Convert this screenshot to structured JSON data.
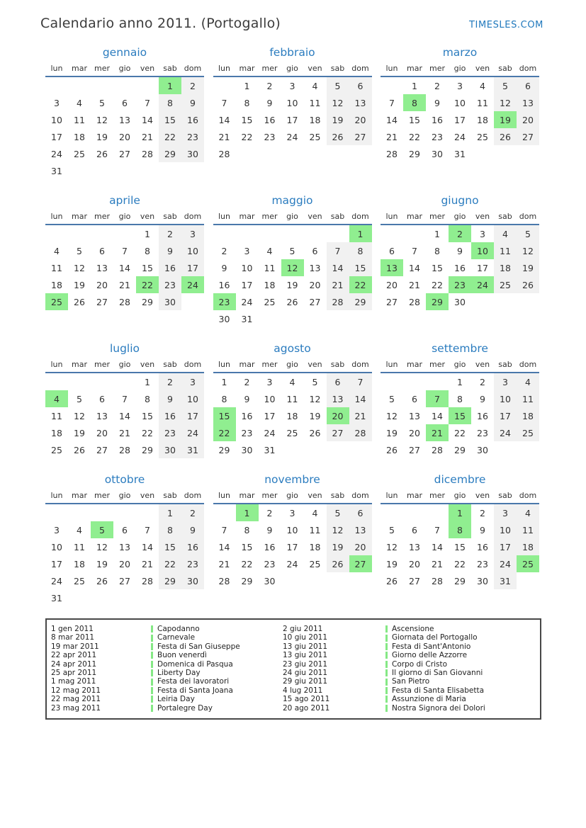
{
  "header": {
    "title": "Calendario anno 2011. (Portogallo)",
    "site": "TIMESLES.COM"
  },
  "weekdays": [
    "lun",
    "mar",
    "mer",
    "gio",
    "ven",
    "sab",
    "dom"
  ],
  "months": [
    {
      "name": "gennaio",
      "start": 5,
      "days": 31,
      "holidays": [
        1
      ]
    },
    {
      "name": "febbraio",
      "start": 1,
      "days": 28,
      "holidays": []
    },
    {
      "name": "marzo",
      "start": 1,
      "days": 31,
      "holidays": [
        8,
        19
      ]
    },
    {
      "name": "aprile",
      "start": 4,
      "days": 30,
      "holidays": [
        22,
        24,
        25
      ]
    },
    {
      "name": "maggio",
      "start": 6,
      "days": 31,
      "holidays": [
        1,
        12,
        22,
        23
      ]
    },
    {
      "name": "giugno",
      "start": 2,
      "days": 30,
      "holidays": [
        2,
        10,
        13,
        23,
        24,
        29
      ]
    },
    {
      "name": "luglio",
      "start": 4,
      "days": 31,
      "holidays": [
        4
      ]
    },
    {
      "name": "agosto",
      "start": 0,
      "days": 31,
      "holidays": [
        15,
        20,
        22
      ]
    },
    {
      "name": "settembre",
      "start": 3,
      "days": 30,
      "holidays": [
        7,
        15,
        21
      ]
    },
    {
      "name": "ottobre",
      "start": 5,
      "days": 31,
      "holidays": [
        5
      ]
    },
    {
      "name": "novembre",
      "start": 1,
      "days": 30,
      "holidays": [
        1,
        27
      ]
    },
    {
      "name": "dicembre",
      "start": 3,
      "days": 31,
      "holidays": [
        1,
        8,
        25
      ]
    }
  ],
  "legend": {
    "column_1": [
      {
        "date": "1 gen 2011",
        "name": "Capodanno"
      },
      {
        "date": "8 mar 2011",
        "name": "Carnevale"
      },
      {
        "date": "19 mar 2011",
        "name": "Festa di San Giuseppe"
      },
      {
        "date": "22 apr 2011",
        "name": "Buon venerdì"
      },
      {
        "date": "24 apr 2011",
        "name": "Domenica di Pasqua"
      },
      {
        "date": "25 apr 2011",
        "name": "Liberty Day"
      },
      {
        "date": "1 mag 2011",
        "name": "Festa dei lavoratori"
      },
      {
        "date": "12 mag 2011",
        "name": "Festa di Santa Joana"
      },
      {
        "date": "22 mag 2011",
        "name": "Leiria Day"
      },
      {
        "date": "23 mag 2011",
        "name": "Portalegre Day"
      }
    ],
    "column_2": [
      {
        "date": "2 giu 2011",
        "name": "Ascensione"
      },
      {
        "date": "10 giu 2011",
        "name": "Giornata del Portogallo"
      },
      {
        "date": "13 giu 2011",
        "name": "Festa di Sant'Antonio"
      },
      {
        "date": "13 giu 2011",
        "name": "Giorno delle Azzorre"
      },
      {
        "date": "23 giu 2011",
        "name": "Corpo di Cristo"
      },
      {
        "date": "24 giu 2011",
        "name": "Il giorno di San Giovanni"
      },
      {
        "date": "29 giu 2011",
        "name": "San Pietro"
      },
      {
        "date": "4 lug 2011",
        "name": "Festa di Santa Elisabetta"
      },
      {
        "date": "15 ago 2011",
        "name": "Assunzione di Maria"
      },
      {
        "date": "20 ago 2011",
        "name": "Nostra Signora dei Dolori"
      }
    ]
  },
  "colors": {
    "accent_blue": "#2b7cbf",
    "rule_blue": "#4a78ab",
    "holiday_green": "#90ee90",
    "weekend_gray": "#f1f1f1"
  }
}
